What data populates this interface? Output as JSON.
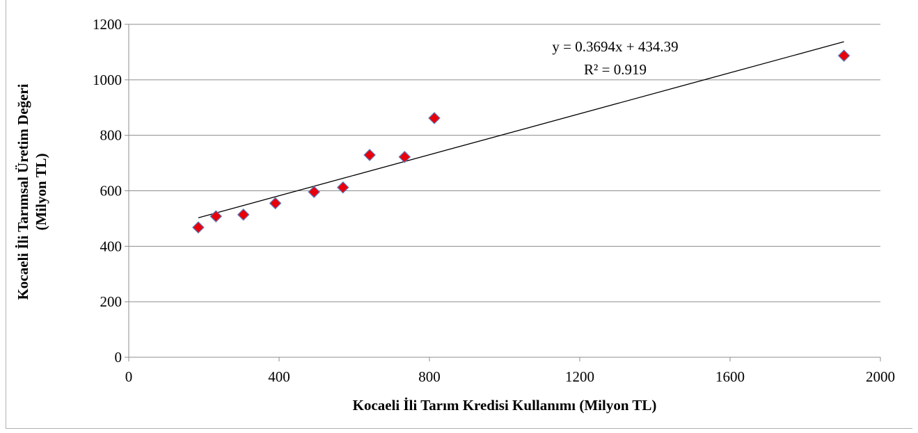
{
  "chart_data": {
    "type": "scatter",
    "title": "",
    "xlabel": "Kocaeli İli Tarım Kredisi Kullanımı (Milyon TL)",
    "ylabel_lines": [
      "Kocaeli İli Tarımsal Üretim Değeri",
      "(Milyon TL)"
    ],
    "xlim": [
      0,
      2000
    ],
    "ylim": [
      0,
      1200
    ],
    "xticks": [
      0,
      400,
      800,
      1200,
      1600,
      2000
    ],
    "yticks": [
      0,
      200,
      400,
      600,
      800,
      1000,
      1200
    ],
    "xtick_labels": [
      "0",
      "400",
      "800",
      "1200",
      "1600",
      "2000"
    ],
    "ytick_labels": [
      "0",
      "200",
      "400",
      "600",
      "800",
      "1000",
      "1200"
    ],
    "grid": "horizontal",
    "marker": "diamond",
    "marker_color": "#e8000b",
    "marker_edge": "#5b7fbf",
    "points": [
      {
        "x": 185,
        "y": 468
      },
      {
        "x": 232,
        "y": 508
      },
      {
        "x": 305,
        "y": 514
      },
      {
        "x": 390,
        "y": 555
      },
      {
        "x": 493,
        "y": 596
      },
      {
        "x": 570,
        "y": 612
      },
      {
        "x": 641,
        "y": 729
      },
      {
        "x": 734,
        "y": 722
      },
      {
        "x": 813,
        "y": 862
      },
      {
        "x": 1903,
        "y": 1087
      }
    ],
    "trendline": {
      "type": "linear",
      "slope": 0.3694,
      "intercept": 434.39,
      "x_range": [
        185,
        1903
      ],
      "equation_text": "y = 0.3694x + 434.39",
      "r2_text": "R² = 0.919"
    }
  }
}
